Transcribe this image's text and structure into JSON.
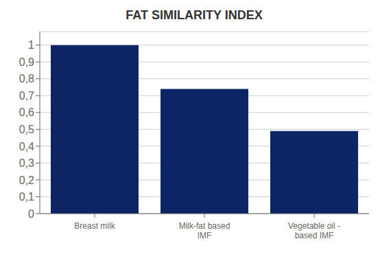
{
  "chart_data": {
    "type": "bar",
    "title": "FAT SIMILARITY INDEX",
    "categories": [
      "Breast milk",
      "Milk-fat based\nIMF",
      "Vegetable oil -\nbased IMF"
    ],
    "values": [
      1.0,
      0.74,
      0.49
    ],
    "color": "#0d2564",
    "ylim": [
      0,
      1.08
    ],
    "yticks": [
      0,
      {
        "value": 0.1,
        "label": "0,1"
      },
      {
        "value": 0.2,
        "label": "0,2"
      },
      {
        "value": 0.3,
        "label": "0,3"
      },
      {
        "value": 0.4,
        "label": "0,4"
      },
      {
        "value": 0.5,
        "label": "0,5"
      },
      {
        "value": 0.6,
        "label": "0,6"
      },
      {
        "value": 0.7,
        "label": "0,7"
      },
      {
        "value": 0.8,
        "label": "0,8"
      },
      {
        "value": 0.9,
        "label": "0,9"
      },
      {
        "value": 1.0,
        "label": "1"
      }
    ],
    "grid": true
  }
}
